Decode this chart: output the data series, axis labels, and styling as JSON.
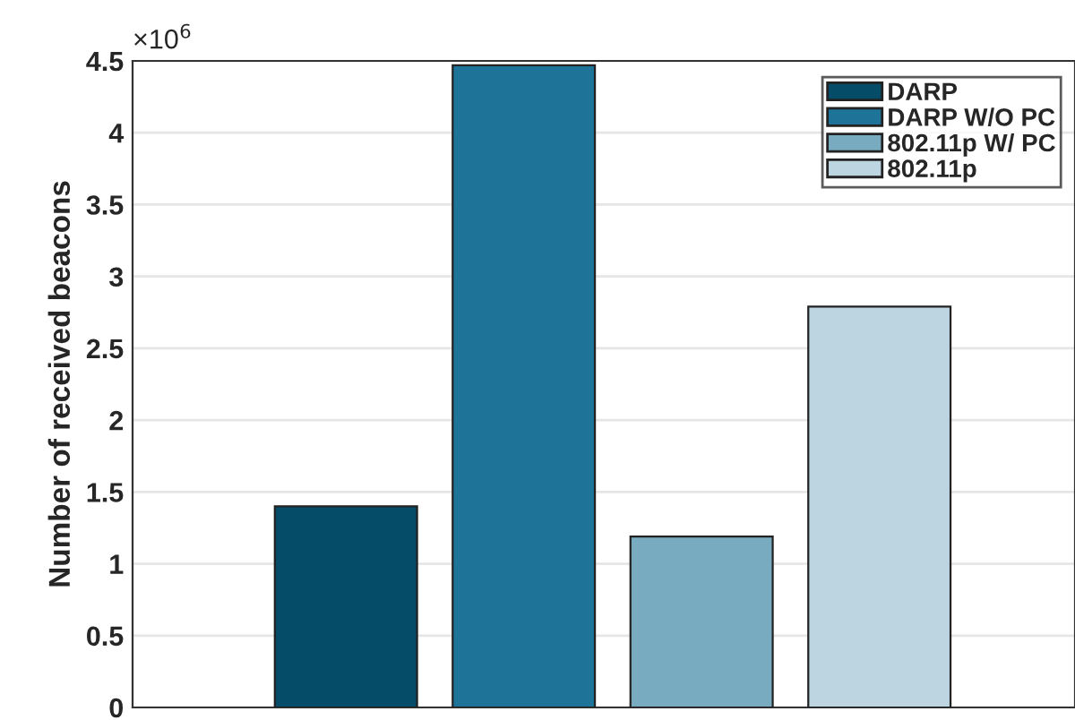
{
  "chart_data": {
    "type": "bar",
    "ylabel": "Number of received beacons",
    "categories": [
      null,
      null,
      null,
      null
    ],
    "series": [
      {
        "name": "DARP",
        "color": "#054c69",
        "values": [
          1.4,
          null,
          null,
          null
        ]
      },
      {
        "name": "DARP W/O PC",
        "color": "#1d7398",
        "values": [
          null,
          4.47,
          null,
          null
        ]
      },
      {
        "name": "802.11p W/ PC",
        "color": "#78abc0",
        "values": [
          null,
          null,
          1.19,
          null
        ]
      },
      {
        "name": "802.11p",
        "color": "#bcd5e0",
        "values": [
          null,
          null,
          null,
          2.79
        ]
      }
    ],
    "ylim": [
      0,
      4.5
    ],
    "yticks": [
      0,
      0.5,
      1,
      1.5,
      2,
      2.5,
      3,
      3.5,
      4,
      4.5
    ],
    "annotations": [
      "×10$^{6}$"
    ],
    "grid": "y",
    "legend": "top right"
  }
}
